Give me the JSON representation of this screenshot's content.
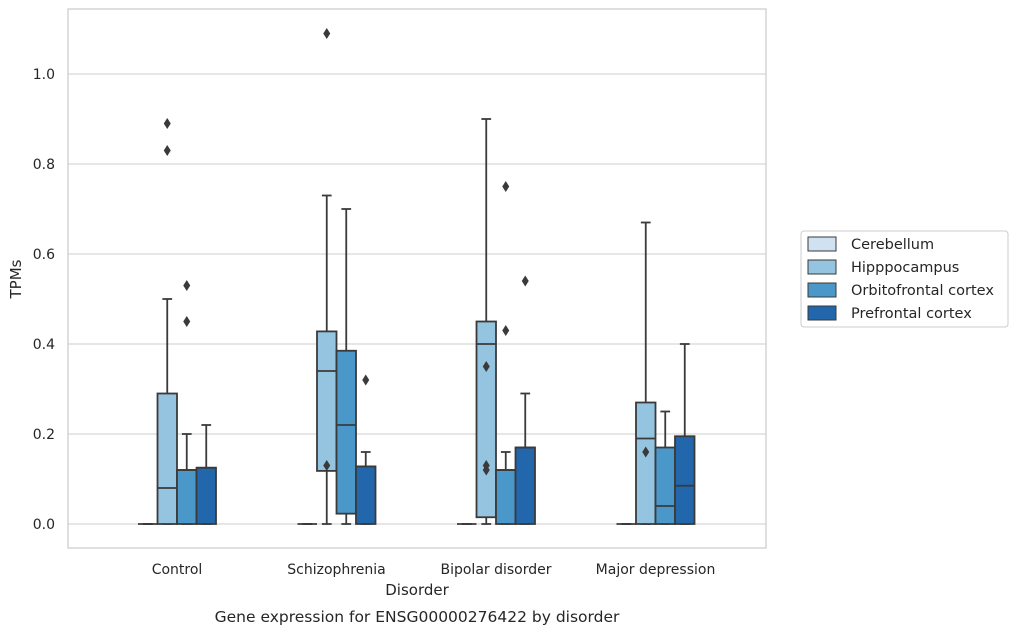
{
  "chart_data": {
    "type": "box",
    "title": "",
    "caption": "Gene expression for ENSG00000276422 by disorder",
    "xlabel": "Disorder",
    "ylabel": "TPMs",
    "ylim": [
      -0.05,
      1.15
    ],
    "yticks": [
      "0.0",
      "0.2",
      "0.4",
      "0.6",
      "0.8",
      "1.0"
    ],
    "grid": "horizontal",
    "legend_position": "right",
    "categories": [
      "Control",
      "Schizophrenia",
      "Bipolar disorder",
      "Major depression"
    ],
    "series": [
      {
        "name": "Cerebellum",
        "color": "#d0e1f2",
        "boxes": [
          {
            "min": 0,
            "q1": 0,
            "median": 0,
            "q3": 0,
            "max": 0,
            "outliers": []
          },
          {
            "min": 0,
            "q1": 0,
            "median": 0,
            "q3": 0,
            "max": 0,
            "outliers": []
          },
          {
            "min": 0,
            "q1": 0,
            "median": 0,
            "q3": 0,
            "max": 0,
            "outliers": []
          },
          {
            "min": 0,
            "q1": 0,
            "median": 0,
            "q3": 0,
            "max": 0,
            "outliers": []
          }
        ]
      },
      {
        "name": "Hipppocampus",
        "color": "#94c4df",
        "boxes": [
          {
            "min": 0,
            "q1": 0,
            "median": 0.08,
            "q3": 0.29,
            "max": 0.5,
            "outliers": [
              0.83,
              0.89
            ]
          },
          {
            "min": 0,
            "q1": 0.118,
            "median": 0.34,
            "q3": 0.428,
            "max": 0.73,
            "outliers": [
              0.13,
              1.09
            ]
          },
          {
            "min": 0,
            "q1": 0.015,
            "median": 0.4,
            "q3": 0.45,
            "max": 0.9,
            "outliers": [
              0.35,
              0.13,
              0.12
            ]
          },
          {
            "min": 0,
            "q1": 0,
            "median": 0.19,
            "q3": 0.27,
            "max": 0.67,
            "outliers": [
              0.16
            ]
          }
        ]
      },
      {
        "name": "Orbitofrontal cortex",
        "color": "#4a98c9",
        "boxes": [
          {
            "min": 0,
            "q1": 0,
            "median": 0.12,
            "q3": 0.12,
            "max": 0.2,
            "outliers": [
              0.45,
              0.53
            ]
          },
          {
            "min": 0,
            "q1": 0.023,
            "median": 0.22,
            "q3": 0.385,
            "max": 0.7,
            "outliers": []
          },
          {
            "min": 0,
            "q1": 0,
            "median": 0.12,
            "q3": 0.12,
            "max": 0.16,
            "outliers": [
              0.43,
              0.75
            ]
          },
          {
            "min": 0,
            "q1": 0,
            "median": 0.04,
            "q3": 0.17,
            "max": 0.25,
            "outliers": []
          }
        ]
      },
      {
        "name": "Prefrontal cortex",
        "color": "#2266ac",
        "boxes": [
          {
            "min": 0,
            "q1": 0,
            "median": 0.125,
            "q3": 0.125,
            "max": 0.22,
            "outliers": []
          },
          {
            "min": 0,
            "q1": 0,
            "median": 0.128,
            "q3": 0.128,
            "max": 0.16,
            "outliers": [
              0.32
            ]
          },
          {
            "min": 0,
            "q1": 0,
            "median": 0.17,
            "q3": 0.17,
            "max": 0.29,
            "outliers": [
              0.54
            ]
          },
          {
            "min": 0,
            "q1": 0,
            "median": 0.085,
            "q3": 0.195,
            "max": 0.4,
            "outliers": []
          }
        ]
      }
    ]
  }
}
